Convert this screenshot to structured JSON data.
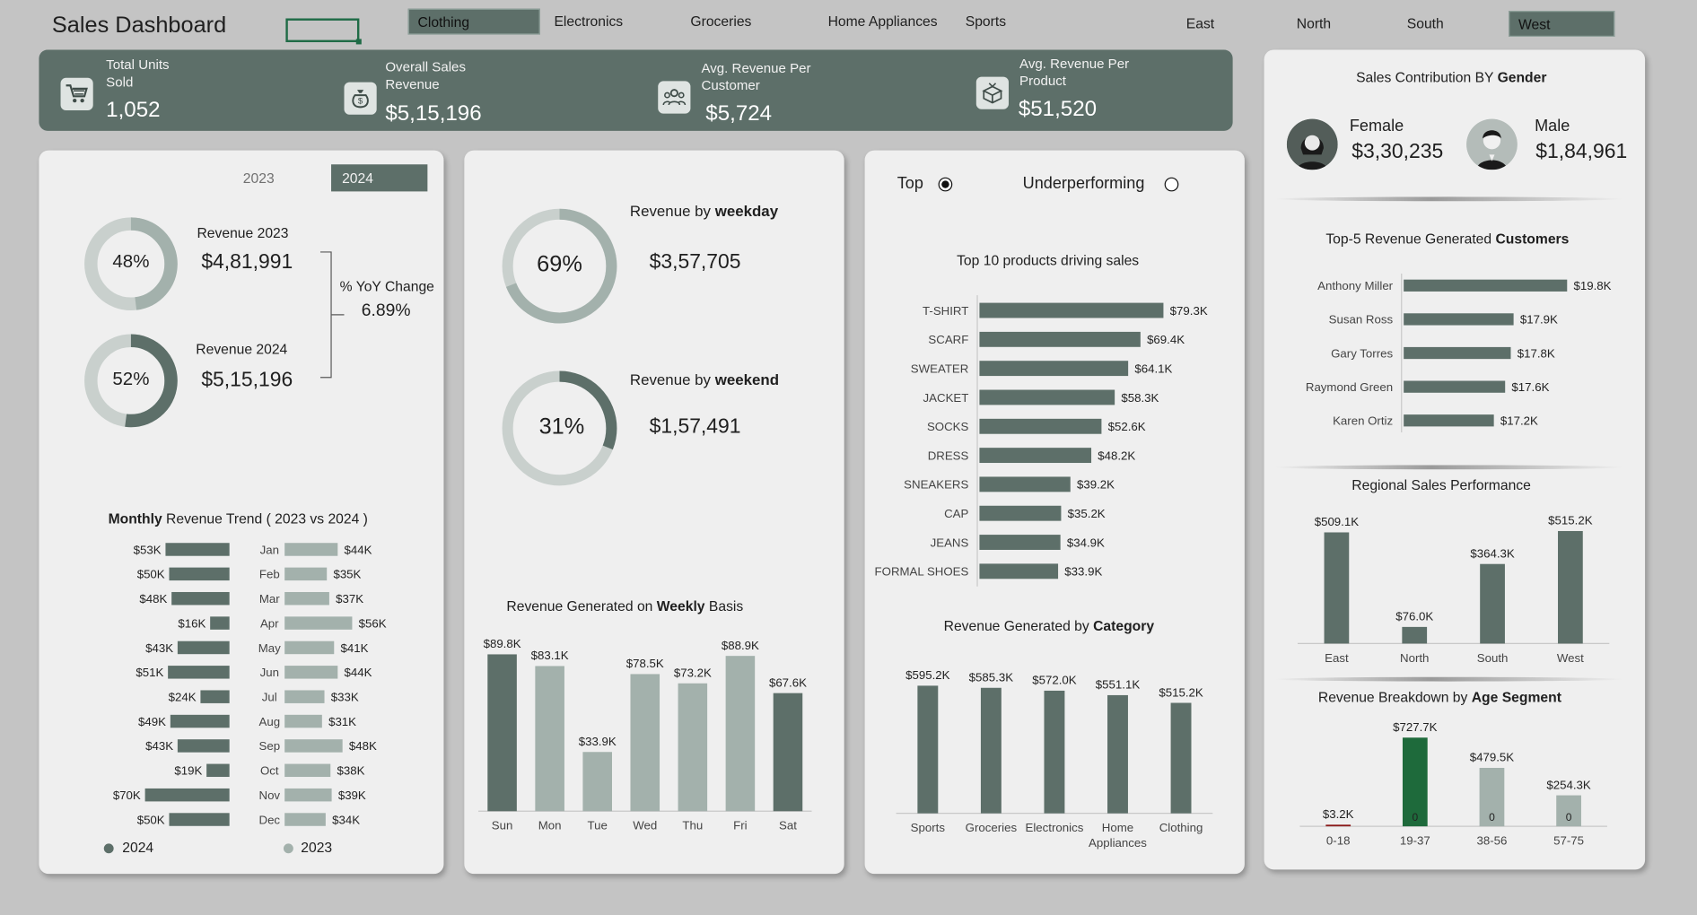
{
  "header": {
    "title": "Sales Dashboard",
    "category_slicer": [
      {
        "label": "Clothing",
        "selected": true
      },
      {
        "label": "Electronics",
        "selected": false
      },
      {
        "label": "Groceries",
        "selected": false
      },
      {
        "label": "Home Appliances",
        "selected": false
      },
      {
        "label": "Sports",
        "selected": false
      }
    ],
    "region_slicer": [
      {
        "label": "East",
        "selected": false
      },
      {
        "label": "North",
        "selected": false
      },
      {
        "label": "South",
        "selected": false
      },
      {
        "label": "West",
        "selected": true
      }
    ]
  },
  "kpis": [
    {
      "label_1": "Total Units",
      "label_2": "Sold",
      "value": "1,052",
      "icon": "cart-icon"
    },
    {
      "label_1": "Overall Sales",
      "label_2": "Revenue",
      "value": "$5,15,196",
      "icon": "money-bag-icon"
    },
    {
      "label_1": "Avg. Revenue Per",
      "label_2": "Customer",
      "value": "$5,724",
      "icon": "people-icon"
    },
    {
      "label_1": "Avg. Revenue Per",
      "label_2": "Product",
      "value": "$51,520",
      "icon": "product-box-icon"
    }
  ],
  "year_panel": {
    "toggle": [
      {
        "label": "2023",
        "selected": false
      },
      {
        "label": "2024",
        "selected": true
      }
    ],
    "rev2023": {
      "label": "Revenue 2023",
      "value": "$4,81,991",
      "pct_label": "48%",
      "pct": 48
    },
    "rev2024": {
      "label": "Revenue 2024",
      "value": "$5,15,196",
      "pct_label": "52%",
      "pct": 52
    },
    "yoy": {
      "label": "% YoY Change",
      "value": "6.89%"
    }
  },
  "monthly": {
    "title_bold": "Monthly",
    "title_rest": " Revenue Trend ( 2023 vs 2024 )",
    "legend": [
      "2024",
      "2023"
    ]
  },
  "weekday_panel": {
    "weekday": {
      "prefix": "Revenue by ",
      "bold": "weekday",
      "value": "$3,57,705",
      "pct_label": "69%",
      "pct": 69
    },
    "weekend": {
      "prefix": "Revenue by ",
      "bold": "weekend",
      "value": "$1,57,491",
      "pct_label": "31%",
      "pct": 31
    },
    "weekly_title": {
      "prefix": "Revenue Generated on ",
      "bold": "Weekly",
      "suffix": " Basis"
    }
  },
  "products_panel": {
    "radio": [
      {
        "label": "Top",
        "selected": true
      },
      {
        "label": "Underperforming",
        "selected": false
      }
    ],
    "top10_title": "Top 10 products driving sales",
    "category_title": {
      "prefix": "Revenue Generated by ",
      "bold": "Category"
    }
  },
  "right_panel": {
    "gender_title": {
      "prefix": "Sales Contribution BY ",
      "bold": "Gender"
    },
    "female": {
      "label": "Female",
      "value": "$3,30,235"
    },
    "male": {
      "label": "Male",
      "value": "$1,84,961"
    },
    "customers_title": {
      "prefix": "Top-5 Revenue Generated  ",
      "bold": "Customers"
    },
    "regional_title": "Regional Sales Performance",
    "age_title": {
      "prefix": "Revenue Breakdown by ",
      "bold": "Age Segment"
    }
  },
  "colors": {
    "dark": "#5d6f69",
    "light": "#a3b1ac",
    "ring_bg": "#c9d0cd",
    "age_green": "#1e6a3b",
    "age_red": "#8b1a1a",
    "panel": "#efefef",
    "background": "#c4c4c4"
  },
  "chart_data": [
    {
      "id": "monthly_trend",
      "type": "bar",
      "orientation": "horizontal",
      "categories": [
        "Jan",
        "Feb",
        "Mar",
        "Apr",
        "May",
        "Jun",
        "Jul",
        "Aug",
        "Sep",
        "Oct",
        "Nov",
        "Dec"
      ],
      "series": [
        {
          "name": "2024",
          "values": [
            53,
            50,
            48,
            16,
            43,
            51,
            24,
            49,
            43,
            19,
            70,
            50
          ],
          "labels": [
            "$53K",
            "$50K",
            "$48K",
            "$16K",
            "$43K",
            "$51K",
            "$24K",
            "$49K",
            "$43K",
            "$19K",
            "$70K",
            "$50K"
          ]
        },
        {
          "name": "2023",
          "values": [
            44,
            35,
            37,
            56,
            41,
            44,
            33,
            31,
            48,
            38,
            39,
            34
          ],
          "labels": [
            "$44K",
            "$35K",
            "$37K",
            "$56K",
            "$41K",
            "$44K",
            "$33K",
            "$31K",
            "$48K",
            "$38K",
            "$39K",
            "$34K"
          ]
        }
      ],
      "legend": "bottom"
    },
    {
      "id": "weekly",
      "type": "bar",
      "categories": [
        "Sun",
        "Mon",
        "Tue",
        "Wed",
        "Thu",
        "Fri",
        "Sat"
      ],
      "values": [
        89.8,
        83.1,
        33.9,
        78.5,
        73.2,
        88.9,
        67.6
      ],
      "labels": [
        "$89.8K",
        "$83.1K",
        "$33.9K",
        "$78.5K",
        "$73.2K",
        "$88.9K",
        "$67.6K"
      ],
      "highlight": [
        "Sun",
        "Sat"
      ]
    },
    {
      "id": "top10_products",
      "type": "bar",
      "orientation": "horizontal",
      "categories": [
        "T-SHIRT",
        "SCARF",
        "SWEATER",
        "JACKET",
        "SOCKS",
        "DRESS",
        "SNEAKERS",
        "CAP",
        "JEANS",
        "FORMAL SHOES"
      ],
      "values": [
        79.3,
        69.4,
        64.1,
        58.3,
        52.6,
        48.2,
        39.2,
        35.2,
        34.9,
        33.9
      ],
      "labels": [
        "$79.3K",
        "$69.4K",
        "$64.1K",
        "$58.3K",
        "$52.6K",
        "$48.2K",
        "$39.2K",
        "$35.2K",
        "$34.9K",
        "$33.9K"
      ]
    },
    {
      "id": "category",
      "type": "bar",
      "categories": [
        "Sports",
        "Groceries",
        "Electronics",
        "Home Appliances",
        "Clothing"
      ],
      "values": [
        595.2,
        585.3,
        572.0,
        551.1,
        515.2
      ],
      "labels": [
        "$595.2K",
        "$585.3K",
        "$572.0K",
        "$551.1K",
        "$515.2K"
      ]
    },
    {
      "id": "top5_customers",
      "type": "bar",
      "orientation": "horizontal",
      "categories": [
        "Anthony Miller",
        "Susan Ross",
        "Gary Torres",
        "Raymond Green",
        "Karen Ortiz"
      ],
      "values": [
        19.8,
        17.9,
        17.8,
        17.6,
        17.2
      ],
      "labels": [
        "$19.8K",
        "$17.9K",
        "$17.8K",
        "$17.6K",
        "$17.2K"
      ]
    },
    {
      "id": "regional",
      "type": "bar",
      "categories": [
        "East",
        "North",
        "South",
        "West"
      ],
      "values": [
        509.1,
        76.0,
        364.3,
        515.2
      ],
      "labels": [
        "$509.1K",
        "$76.0K",
        "$364.3K",
        "$515.2K"
      ]
    },
    {
      "id": "age_segment",
      "type": "bar",
      "categories": [
        "0-18",
        "19-37",
        "38-56",
        "57-75"
      ],
      "values": [
        3.2,
        727.7,
        479.5,
        254.3
      ],
      "labels": [
        "$3.2K",
        "$727.7K",
        "$479.5K",
        "$254.3K"
      ],
      "inner_labels": [
        "",
        "0",
        "0",
        "0"
      ]
    }
  ]
}
